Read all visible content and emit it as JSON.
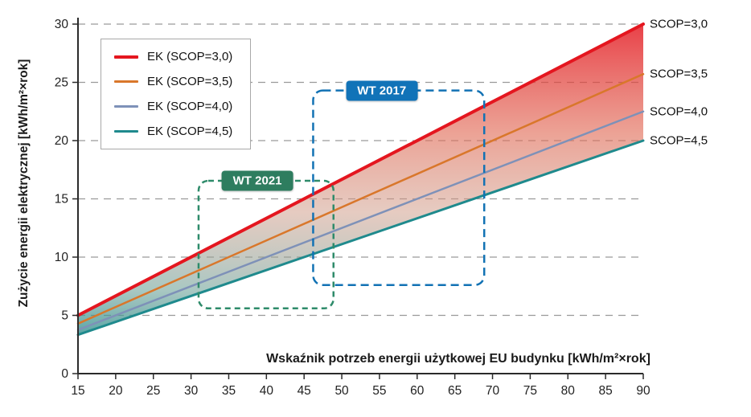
{
  "chart_data": {
    "type": "line",
    "title": "",
    "xlabel": "Wskaźnik potrzeb energii użytkowej EU budynku [kWh/m²×rok]",
    "ylabel": "Zużycie energii elektrycznej [kWh/m²×rok]",
    "x_range": [
      15,
      90
    ],
    "y_range": [
      0,
      30
    ],
    "x_ticks": [
      15,
      20,
      25,
      30,
      35,
      40,
      45,
      50,
      55,
      60,
      65,
      70,
      75,
      80,
      85,
      90
    ],
    "y_ticks": [
      0,
      5,
      10,
      15,
      20,
      25,
      30
    ],
    "grid": "horizontal-dashed",
    "legend_position": "top-left",
    "series": [
      {
        "name": "EK (SCOP=3,0)",
        "scop": 3.0,
        "color": "#e4161f",
        "width": 4,
        "right_label": "SCOP=3,0",
        "x": [
          15,
          90
        ],
        "y": [
          5.0,
          30.0
        ]
      },
      {
        "name": "EK (SCOP=3,5)",
        "scop": 3.5,
        "color": "#d9772b",
        "width": 2.5,
        "right_label": "SCOP=3,5",
        "x": [
          15,
          90
        ],
        "y": [
          4.29,
          25.71
        ]
      },
      {
        "name": "EK (SCOP=4,0)",
        "scop": 4.0,
        "color": "#7e91b8",
        "width": 2.5,
        "right_label": "SCOP=4,0",
        "x": [
          15,
          90
        ],
        "y": [
          3.75,
          22.5
        ]
      },
      {
        "name": "EK (SCOP=4,5)",
        "scop": 4.5,
        "color": "#1f8a8d",
        "width": 3,
        "right_label": "SCOP=4,5",
        "x": [
          15,
          90
        ],
        "y": [
          3.33,
          20.0
        ]
      }
    ],
    "band": {
      "top_series_index": 0,
      "bottom_series_index": 3,
      "gradient_stops": [
        {
          "offset": 0,
          "color": "#e4161f",
          "opacity": 0.82
        },
        {
          "offset": 0.35,
          "color": "#e06a55",
          "opacity": 0.62
        },
        {
          "offset": 0.6,
          "color": "#cf9b88",
          "opacity": 0.52
        },
        {
          "offset": 0.85,
          "color": "#6fa39a",
          "opacity": 0.6
        },
        {
          "offset": 1,
          "color": "#2a8c8c",
          "opacity": 0.8
        }
      ]
    },
    "annotations": [
      {
        "label": "WT 2021",
        "x1": 31.0,
        "x2": 48.9,
        "y1": 5.6,
        "y2": 16.55,
        "border_color": "#2e8b6a",
        "label_bg": "#2e7d5f",
        "label_x": 38.8,
        "dash": "7 5"
      },
      {
        "label": "WT 2017",
        "x1": 46.2,
        "x2": 68.9,
        "y1": 7.6,
        "y2": 24.3,
        "border_color": "#1272b4",
        "label_bg": "#1173b8",
        "label_x": 55.3,
        "dash": "10 6"
      }
    ],
    "axis_color": "#2b2b2b",
    "grid_color": "#9a9a9a",
    "tick_label_color": "#222222"
  }
}
